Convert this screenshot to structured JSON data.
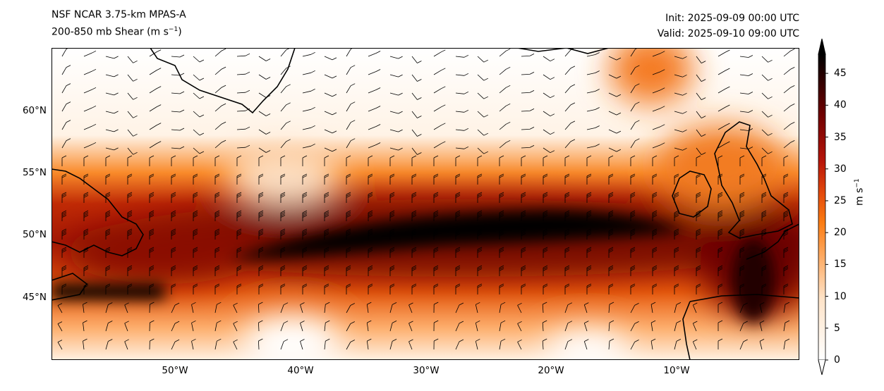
{
  "title": {
    "model": "NSF NCAR 3.75-km MPAS-A",
    "field": "200-850 mb Shear (m s",
    "field_sup": "−1",
    "field_close": ")",
    "init": "Init: 2025-09-09 00:00 UTC",
    "valid": "Valid: 2025-09-10 09:00 UTC"
  },
  "map": {
    "region": "North Atlantic",
    "lon_range": [
      -60,
      0
    ],
    "lat_range": [
      40,
      65
    ],
    "lat_ticks": [
      "60°N",
      "55°N",
      "50°N",
      "45°N"
    ],
    "lon_ticks": [
      "50°W",
      "40°W",
      "30°W",
      "20°W",
      "10°W"
    ]
  },
  "colorbar": {
    "label": "m s",
    "label_sup": "−1",
    "ticks": [
      "0",
      "5",
      "10",
      "15",
      "20",
      "25",
      "30",
      "35",
      "40",
      "45"
    ],
    "range": [
      0,
      48
    ],
    "colors": [
      "#ffffff",
      "#fee6ce",
      "#fdae6b",
      "#fd8d3c",
      "#f16913",
      "#d94801",
      "#b0120a",
      "#7f0000",
      "#3d0000",
      "#000000"
    ]
  }
}
